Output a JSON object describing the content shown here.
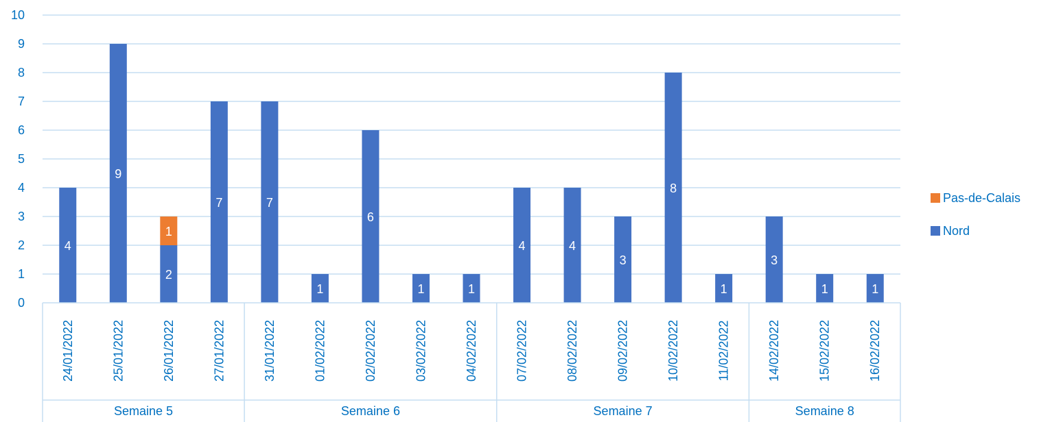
{
  "chart_data": {
    "type": "bar",
    "stacked": true,
    "categories": [
      "24/01/2022",
      "25/01/2022",
      "26/01/2022",
      "27/01/2022",
      "31/01/2022",
      "01/02/2022",
      "02/02/2022",
      "03/02/2022",
      "04/02/2022",
      "07/02/2022",
      "08/02/2022",
      "09/02/2022",
      "10/02/2022",
      "11/02/2022",
      "14/02/2022",
      "15/02/2022",
      "16/02/2022"
    ],
    "groups": [
      {
        "label": "Semaine 5",
        "count": 4
      },
      {
        "label": "Semaine 6",
        "count": 5
      },
      {
        "label": "Semaine 7",
        "count": 5
      },
      {
        "label": "Semaine 8",
        "count": 3
      }
    ],
    "series": [
      {
        "name": "Nord",
        "color": "#4472C4",
        "values": [
          4,
          9,
          2,
          7,
          7,
          1,
          6,
          1,
          1,
          4,
          4,
          3,
          8,
          1,
          3,
          1,
          1
        ]
      },
      {
        "name": "Pas-de-Calais",
        "color": "#ED7D31",
        "values": [
          0,
          0,
          1,
          0,
          0,
          0,
          0,
          0,
          0,
          0,
          0,
          0,
          0,
          0,
          0,
          0,
          0
        ]
      }
    ],
    "ylim": [
      0,
      10
    ],
    "yticks": [
      "0",
      "1",
      "2",
      "3",
      "4",
      "5",
      "6",
      "7",
      "8",
      "9",
      "10"
    ],
    "grid": true,
    "legend_position": "right",
    "legend_order": [
      "Pas-de-Calais",
      "Nord"
    ],
    "text_color": "#0070C0",
    "grid_color": "#C5DEF2"
  }
}
